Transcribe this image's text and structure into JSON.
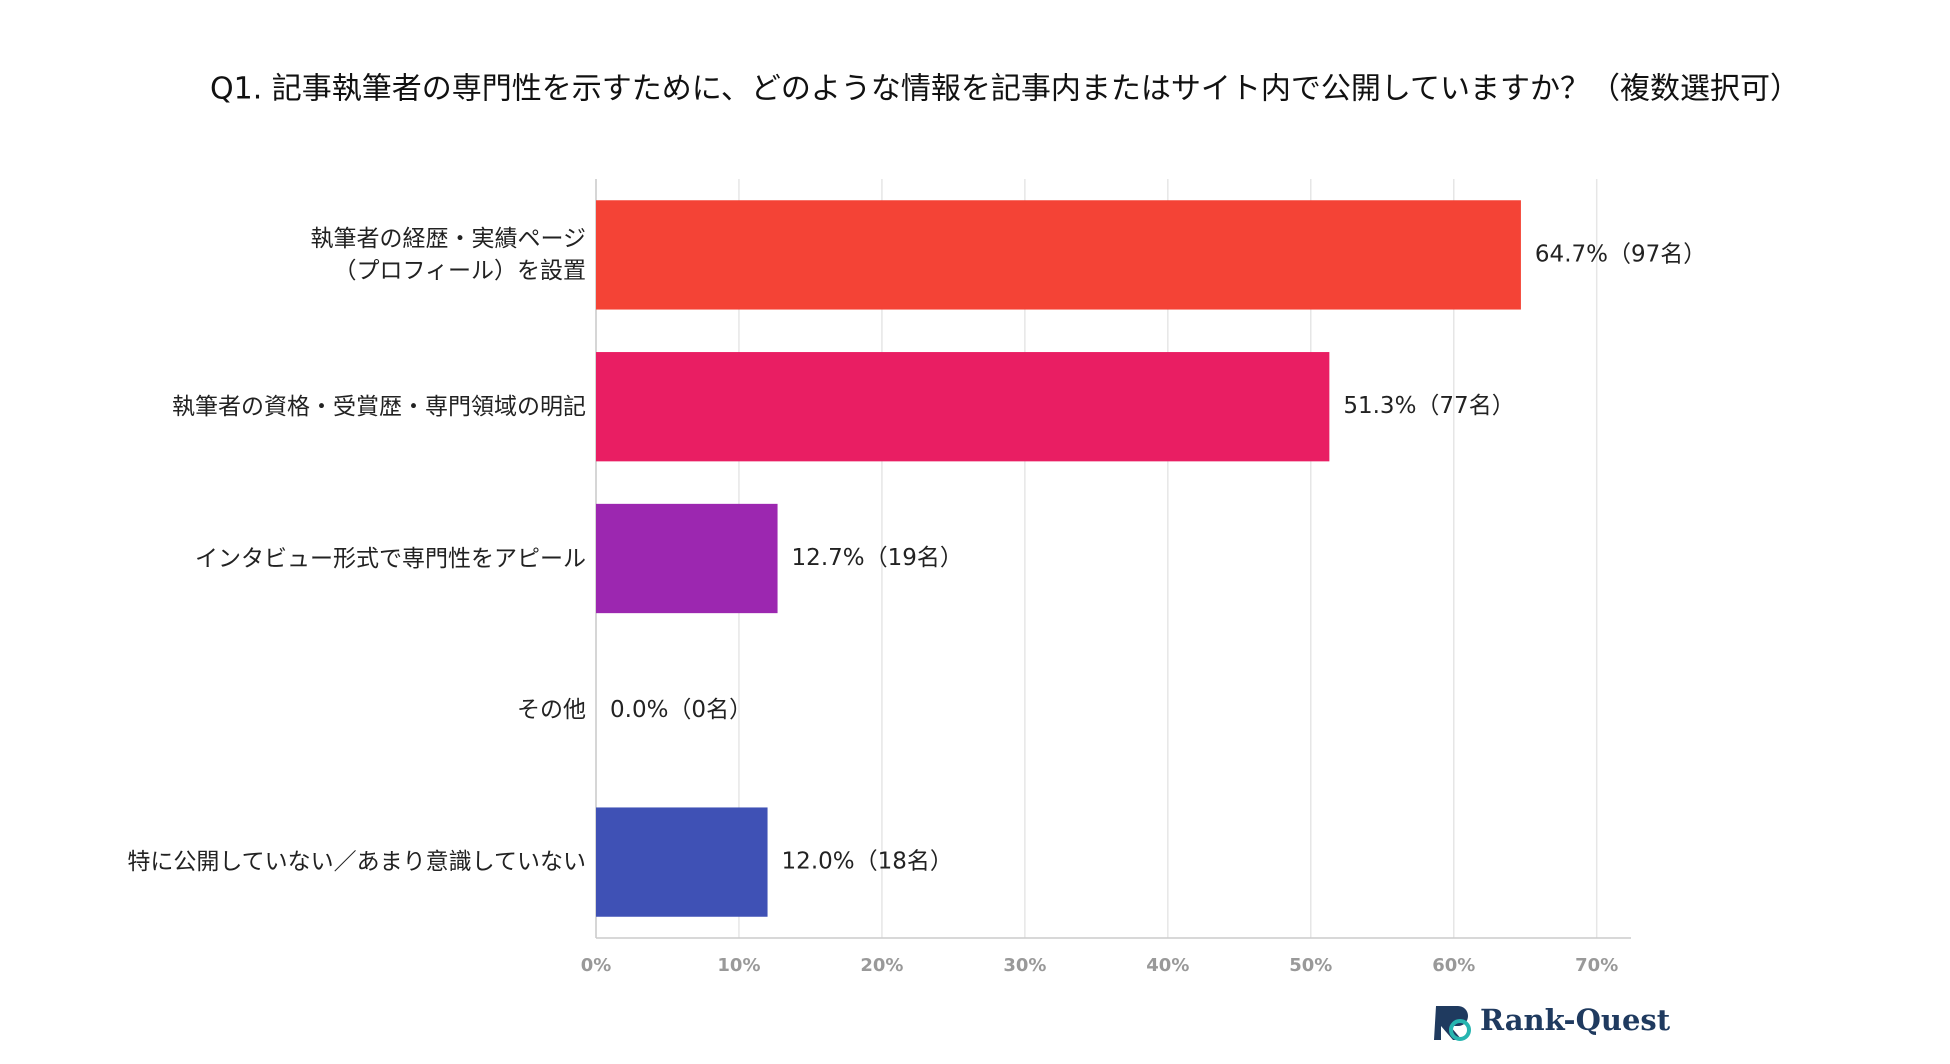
{
  "chart_data": {
    "type": "barh",
    "title": "Q1. 記事執筆者の専門性を示すために、どのような情報を記事内またはサイト内で公開していますか？（複数選択可）",
    "categories": [
      "執筆者の経歴・実績ページ\n（プロフィール）を設置",
      "執筆者の資格・受賞歴・専門領域の明記",
      "インタビュー形式で専門性をアピール",
      "その他",
      "特に公開していない／あまり意識していない"
    ],
    "values": [
      64.7,
      51.3,
      12.7,
      0.0,
      12.0
    ],
    "value_labels": [
      "64.7%（97名）",
      "51.3%（77名）",
      "12.7%（19名）",
      "0.0%（0名）",
      "12.0%（18名）"
    ],
    "colors": [
      "#f44336",
      "#e91e63",
      "#9c27b0",
      "#9e9e9e",
      "#3f51b5"
    ],
    "xlim": [
      0,
      72.4
    ],
    "xticks": [
      {
        "value": 0,
        "label": "0%"
      },
      {
        "value": 10,
        "label": "10%"
      },
      {
        "value": 20,
        "label": "20%"
      },
      {
        "value": 30,
        "label": "30%"
      },
      {
        "value": 40,
        "label": "40%"
      },
      {
        "value": 50,
        "label": "50%"
      },
      {
        "value": 60,
        "label": "60%"
      },
      {
        "value": 70,
        "label": "70%"
      }
    ],
    "grid": true
  },
  "logo": "Rank-Quest"
}
